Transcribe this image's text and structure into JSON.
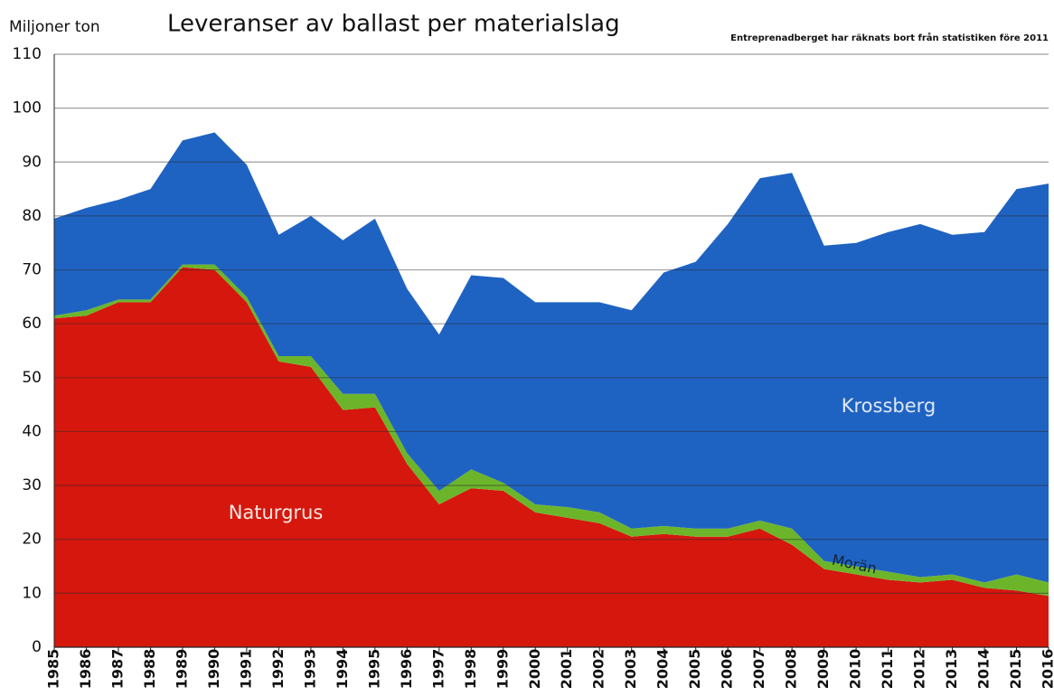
{
  "chart_data": {
    "type": "stacked-area",
    "title": "Leveranser av ballast per materialslag",
    "y_label": "Miljoner ton",
    "note": "Entreprenadberget har räknats bort från statistiken före 2011",
    "categories": [
      "1985",
      "1986",
      "1987",
      "1988",
      "1989",
      "1990",
      "1991",
      "1992",
      "1993",
      "1994",
      "1995",
      "1996",
      "1997",
      "1998",
      "1999",
      "2000",
      "2001",
      "2002",
      "2003",
      "2004",
      "2005",
      "2006",
      "2007",
      "2008",
      "2009",
      "2010",
      "2011",
      "2012",
      "2013",
      "2014",
      "2015",
      "2016"
    ],
    "series": [
      {
        "name": "Naturgrus",
        "color": "#d5170e",
        "values": [
          61,
          61.5,
          64,
          64,
          70.5,
          70,
          64,
          53,
          52,
          44,
          44.5,
          34,
          26.5,
          29.5,
          29,
          25,
          24,
          23,
          20.5,
          21,
          20.5,
          20.5,
          22,
          19,
          14.5,
          13.5,
          12.5,
          12,
          12.5,
          11,
          10.5,
          9.5
        ]
      },
      {
        "name": "Morän",
        "color": "#6cb52b",
        "values": [
          0.5,
          1,
          0.5,
          0.5,
          0.5,
          1,
          1,
          1,
          2,
          3,
          2.5,
          2,
          2.5,
          3.5,
          1.5,
          1.5,
          2,
          2,
          1.5,
          1.5,
          1.5,
          1.5,
          1.5,
          3,
          1.5,
          1.5,
          1.5,
          1,
          1,
          1,
          3,
          2.5
        ]
      },
      {
        "name": "Krossberg",
        "color": "#1f63c2",
        "values": [
          18,
          19,
          18.5,
          20.5,
          23,
          24.5,
          24.5,
          22.5,
          26,
          28.5,
          32.5,
          30.5,
          29,
          36,
          38,
          37.5,
          38,
          39,
          40.5,
          47,
          49.5,
          56.5,
          63.5,
          66,
          58.5,
          60,
          63,
          65.5,
          63,
          65,
          71.5,
          74
        ]
      }
    ],
    "ylim": [
      0,
      110
    ],
    "yticks": [
      0,
      10,
      20,
      30,
      40,
      50,
      60,
      70,
      80,
      90,
      100,
      110
    ],
    "grid": true
  }
}
